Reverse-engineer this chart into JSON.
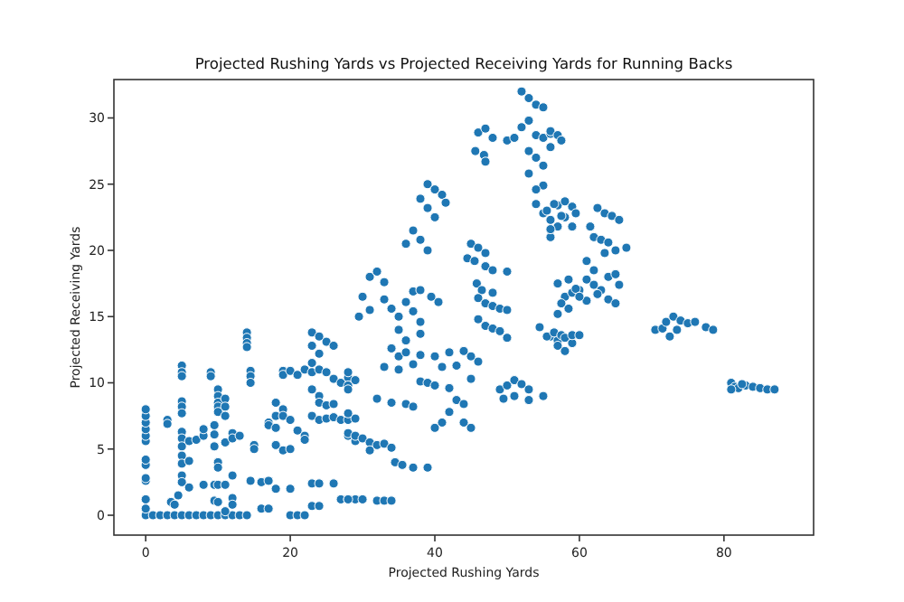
{
  "chart_data": {
    "type": "scatter",
    "title": "Projected Rushing Yards vs Projected Receiving Yards for Running Backs",
    "xlabel": "Projected Rushing Yards",
    "ylabel": "Projected Receiving Yards",
    "xlim": [
      -4.4,
      92.4
    ],
    "ylim": [
      -1.5,
      32.9
    ],
    "xticks": [
      0,
      20,
      40,
      60,
      80
    ],
    "yticks": [
      0,
      5,
      10,
      15,
      20,
      25,
      30
    ],
    "grid": false,
    "marker": "circle",
    "series": [
      {
        "color": "#1f77b4",
        "x": [
          0,
          0,
          0,
          0,
          0,
          0,
          0,
          0,
          0,
          0,
          0,
          0,
          0,
          1,
          2,
          3,
          4,
          5,
          6,
          7,
          8,
          9,
          10,
          11,
          12,
          13,
          14,
          3,
          3,
          3.5,
          4,
          5,
          5,
          5,
          5,
          5,
          5,
          5,
          5,
          5,
          5,
          5,
          5,
          5,
          4.5,
          6,
          6,
          6,
          7,
          8,
          8,
          8,
          9,
          9,
          9.5,
          9.5,
          9.5,
          9.5,
          9.5,
          10,
          10,
          10,
          10,
          10,
          10,
          10,
          10,
          10,
          11,
          11,
          11,
          11,
          11,
          11,
          12,
          12,
          12,
          12,
          12,
          13,
          14,
          14,
          14,
          14,
          14.5,
          14.5,
          14.5,
          14.5,
          15,
          15,
          16,
          16,
          17,
          17,
          17,
          17,
          18,
          18,
          18,
          18,
          18,
          19,
          19,
          19,
          19,
          19,
          20,
          20,
          20,
          20,
          20,
          21,
          21,
          21,
          22,
          22,
          22,
          22,
          23,
          23,
          23,
          23,
          23,
          23,
          23,
          23,
          24,
          24,
          24,
          24,
          24,
          24,
          24,
          24,
          25,
          25,
          25,
          25,
          26,
          26,
          26,
          26,
          26,
          27,
          27,
          27,
          28,
          28,
          28,
          28,
          28,
          29,
          29,
          29,
          29,
          29.5,
          28,
          28,
          28,
          52,
          53,
          54,
          46,
          47,
          48,
          45.6,
          46.8,
          47,
          50,
          51,
          52,
          53,
          54,
          55,
          56,
          53,
          54,
          55,
          53,
          55,
          54,
          56,
          57,
          57.5,
          56,
          55,
          39,
          40,
          41,
          38,
          39,
          40,
          41.5,
          37,
          38,
          39,
          36,
          45,
          46,
          47,
          44.5,
          45.5,
          47,
          48,
          50,
          45.8,
          46.5,
          48,
          31,
          32,
          33,
          30,
          31,
          33,
          34,
          35,
          36,
          37,
          38,
          39.5,
          40.5,
          37,
          38,
          35,
          36,
          38,
          46,
          47,
          48,
          49,
          50,
          46,
          47,
          48,
          49,
          50,
          34,
          35,
          36,
          37,
          38,
          40,
          42,
          44,
          45,
          46,
          43,
          41,
          33,
          35,
          38,
          39,
          40,
          42,
          45,
          43,
          44,
          42,
          44,
          41,
          40,
          45,
          49,
          50,
          51,
          52,
          53,
          51,
          53,
          49.5,
          32,
          34,
          36,
          37,
          28,
          29,
          30,
          31,
          32,
          33,
          34,
          31,
          34.5,
          35.5,
          37,
          39,
          28,
          30,
          32,
          33,
          34,
          54,
          55,
          56,
          57,
          58,
          59,
          56,
          54.5,
          56,
          57,
          59,
          57,
          58,
          59,
          55.5,
          56.5,
          57.5,
          58,
          59,
          59.5,
          57,
          56,
          62.5,
          63.5,
          64.5,
          65.5,
          61.5,
          62,
          63,
          64,
          65,
          66.5,
          63.5,
          61,
          62,
          61,
          62,
          63,
          64,
          65,
          65.5,
          60,
          61,
          62.5,
          64,
          65,
          58.5,
          59.5,
          60,
          57.5,
          58.5,
          57,
          55.5,
          56.5,
          57.5,
          58,
          59,
          60,
          57,
          58,
          70.5,
          71.5,
          72,
          73,
          74,
          75,
          76,
          77.5,
          78.5,
          72.5,
          73.5,
          81,
          81.5,
          82,
          83,
          84,
          85,
          86,
          87,
          81,
          82.5,
          55
        ],
        "values": [
          0,
          0.5,
          1.2,
          2.6,
          2.8,
          3.8,
          4.2,
          5.6,
          6,
          6.5,
          7,
          7.5,
          8,
          0,
          0,
          0,
          0,
          0,
          0,
          0,
          0,
          0,
          0,
          0,
          0,
          0,
          0,
          7.2,
          6.9,
          1,
          0.8,
          11.3,
          10.8,
          10.5,
          8.6,
          8.2,
          7.7,
          6.3,
          5.8,
          5.2,
          4.5,
          3.9,
          3,
          2.5,
          1.5,
          5.6,
          4.1,
          2.1,
          5.7,
          6,
          6.5,
          2.3,
          10.8,
          10.5,
          6.8,
          6.1,
          5.2,
          2.3,
          1.1,
          9.5,
          9,
          8.5,
          8.2,
          7.8,
          4,
          3.6,
          2.3,
          1,
          8.8,
          8.2,
          7.5,
          5.5,
          2.3,
          0.3,
          6.2,
          5.8,
          3,
          1.3,
          0.8,
          6,
          13.8,
          13.4,
          13,
          12.7,
          10.9,
          10.5,
          10,
          2.6,
          5.3,
          5,
          0.5,
          2.5,
          0.5,
          7,
          6.8,
          2.6,
          7.5,
          8.5,
          6.6,
          5.3,
          2,
          10.9,
          10.6,
          8,
          7.5,
          4.9,
          10.9,
          7.2,
          5,
          2,
          0,
          0,
          10.6,
          6.4,
          6,
          5.7,
          0,
          11,
          13.8,
          12.8,
          11.5,
          10.8,
          9.5,
          7.5,
          0.7,
          2.4,
          13.5,
          12.2,
          11,
          9,
          8.5,
          7.2,
          0.7,
          2.4,
          13.1,
          10.8,
          8.3,
          7.3,
          12.8,
          10.3,
          8.4,
          7.4,
          2.4,
          10,
          7.2,
          1.2,
          10.4,
          9.8,
          7.2,
          6,
          1.2,
          10.2,
          7.3,
          5.6,
          1.2,
          15,
          10.8,
          9.5,
          7.7,
          32,
          31.5,
          31,
          28.9,
          29.2,
          28.5,
          27.5,
          27.2,
          26.7,
          28.3,
          28.5,
          29.3,
          29.8,
          28.7,
          28.5,
          28.8,
          27.5,
          27,
          26.4,
          25.8,
          24.9,
          24.6,
          29,
          28.7,
          28.3,
          27.8,
          30.8,
          25,
          24.6,
          24.2,
          23.9,
          23.2,
          22.5,
          23.6,
          21.5,
          20.8,
          20,
          20.5,
          20.5,
          20.2,
          19.8,
          19.4,
          19.2,
          18.8,
          18.5,
          18.4,
          17.5,
          17,
          16.8,
          18,
          18.4,
          17.6,
          16.5,
          15.5,
          16.3,
          15.6,
          15,
          16.1,
          16.9,
          17,
          16.5,
          16.1,
          15.4,
          14.6,
          14,
          13.2,
          13.7,
          16.4,
          16,
          15.8,
          15.6,
          15.5,
          14.8,
          14.3,
          14.1,
          13.9,
          13.4,
          12.6,
          12,
          12.3,
          11.4,
          12.1,
          12,
          12.3,
          12.4,
          12,
          11.6,
          11.3,
          11.2,
          11.2,
          11,
          10.1,
          10,
          9.8,
          9.6,
          10.3,
          8.7,
          8.4,
          7.8,
          7,
          7,
          6.6,
          6.6,
          9.5,
          9.8,
          10.2,
          9.9,
          9.5,
          9,
          8.7,
          8.8,
          8.8,
          8.5,
          8.4,
          8.2,
          6.2,
          6,
          5.8,
          5.5,
          5.3,
          5.4,
          5.1,
          4.9,
          4,
          3.8,
          3.6,
          3.6,
          1.2,
          1.2,
          1.1,
          1.1,
          1.1,
          23.5,
          22.8,
          22.3,
          23.4,
          22.5,
          21.8,
          21,
          14.2,
          13.5,
          13.2,
          13,
          17.5,
          16.5,
          16.8,
          23,
          23.5,
          22.6,
          23.7,
          23.3,
          22.8,
          21.8,
          21.6,
          23.2,
          22.8,
          22.6,
          22.3,
          21.8,
          21,
          20.8,
          20.6,
          20,
          20.2,
          19.8,
          19.2,
          18.5,
          17.8,
          17.4,
          17,
          18,
          18.2,
          17.4,
          17,
          16.2,
          16.7,
          16.3,
          16,
          17.8,
          17.1,
          16.5,
          16,
          15.6,
          15.2,
          13.5,
          13.8,
          13.6,
          13.4,
          13.6,
          13.6,
          12.8,
          12.4,
          14,
          14.1,
          14.6,
          15,
          14.7,
          14.5,
          14.6,
          14.2,
          14,
          13.5,
          14,
          10,
          9.7,
          9.6,
          9.8,
          9.7,
          9.6,
          9.5,
          9.5,
          9.5,
          9.9,
          9
        ]
      }
    ]
  }
}
